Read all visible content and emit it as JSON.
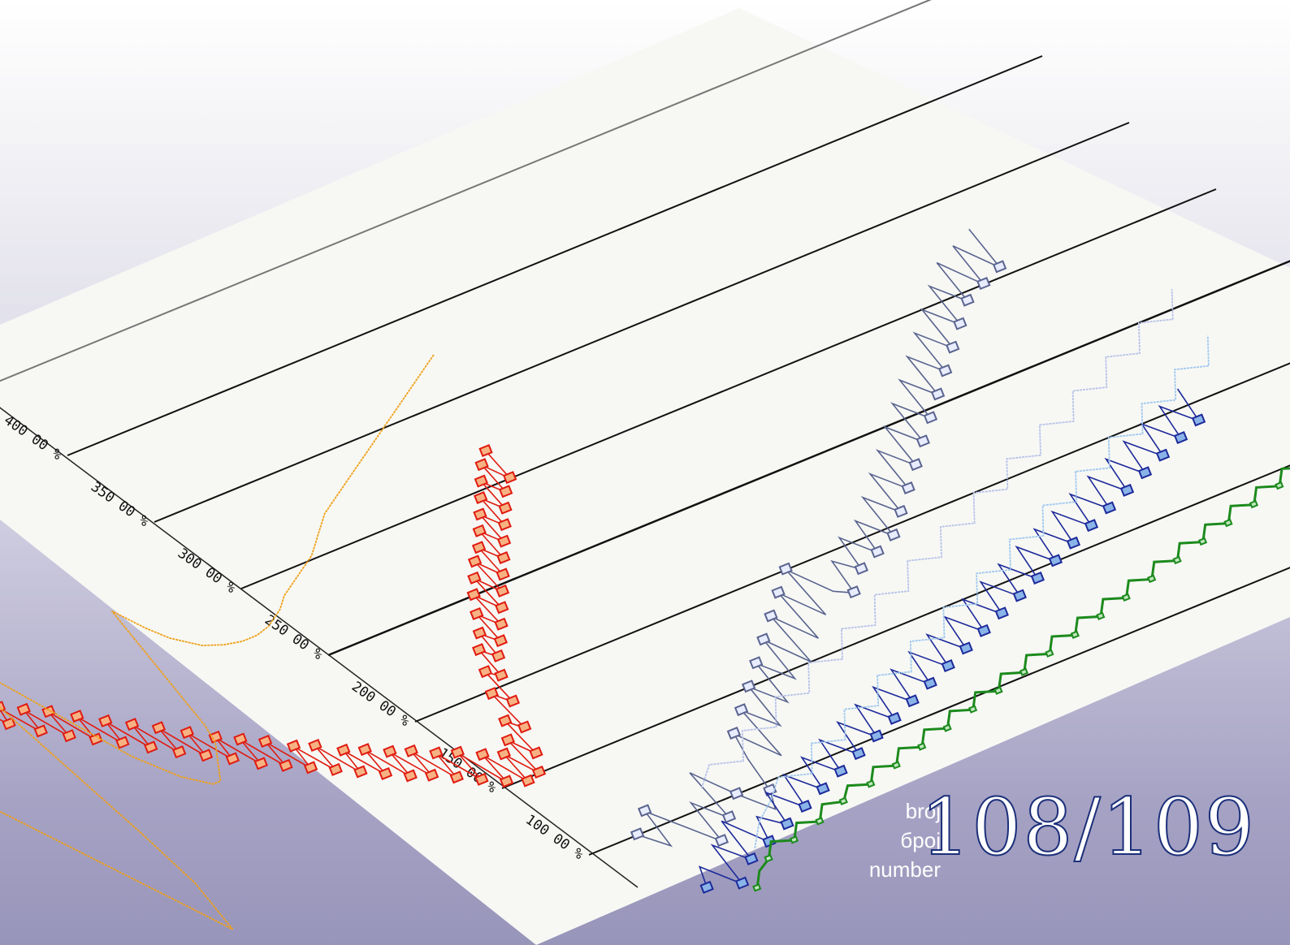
{
  "cover": {
    "words": [
      "broj",
      "број",
      "number"
    ],
    "issue_number": "108/109"
  },
  "colors": {
    "background_top": "#ffffff",
    "background_bottom": "#9895ba",
    "plane": "#f7f8f4",
    "red_series": "#e01b10",
    "red_marker_fill": "#f7b283",
    "orange_series": "#f0a018",
    "navy_series": "#1d2a9a",
    "navy_marker_fill": "#8ab4e8",
    "slate_series": "#5a648f",
    "green_series": "#1c8a1c",
    "light_blue_series": "#a0c8ee",
    "number_outline": "#1b2f7a"
  },
  "chart_data": {
    "type": "line",
    "title": "",
    "xlabel": "",
    "ylabel": "",
    "y_tick_labels": [
      "100 00 %",
      "150 00 %",
      "200 00 %",
      "250 00 %",
      "300 00 %",
      "350 00 %",
      "400 00 %"
    ],
    "ylim": [
      0,
      460
    ],
    "grid": true,
    "series": [
      {
        "color": "red",
        "values": [
          380,
          395,
          372,
          388,
          360,
          375,
          355,
          365,
          350,
          360,
          340,
          352,
          330,
          345,
          320,
          335,
          310,
          325,
          300,
          315,
          295,
          310,
          290,
          302,
          285,
          296,
          280,
          290,
          270,
          284,
          262,
          278,
          255,
          270,
          248,
          262,
          240,
          255,
          232,
          248,
          225,
          240,
          218,
          232,
          210,
          226,
          204,
          220,
          198,
          212,
          192,
          208,
          186,
          200,
          180,
          196,
          174,
          190,
          170,
          186,
          164,
          180,
          158,
          176,
          152,
          170,
          148,
          166,
          150,
          172,
          160,
          182,
          175,
          198,
          190,
          210,
          205,
          222,
          215,
          230,
          222,
          240,
          230,
          250,
          238,
          258,
          246,
          266,
          254,
          272,
          262,
          280,
          270,
          288,
          278,
          296,
          286,
          304,
          294,
          312,
          300,
          318
        ]
      },
      {
        "color": "orange",
        "values": [
          360,
          345,
          330,
          315,
          300,
          285,
          270,
          255,
          240,
          225,
          210,
          195,
          180,
          165,
          150,
          135,
          150,
          165,
          200,
          245,
          290,
          330,
          320,
          300,
          280,
          260,
          240,
          230,
          220,
          215,
          210,
          210,
          215,
          220,
          225,
          230,
          240,
          255,
          270,
          285,
          300,
          315,
          300,
          290,
          285,
          280,
          278,
          276,
          275,
          274,
          274,
          274,
          275,
          276,
          278,
          280,
          282,
          285,
          288,
          290,
          292,
          294,
          296,
          298,
          300,
          302,
          305,
          308,
          311,
          314,
          317,
          320,
          322,
          324,
          326,
          328,
          330,
          332,
          334,
          336,
          338,
          340,
          342,
          344,
          346,
          348,
          350,
          352,
          354,
          356,
          358,
          360,
          362,
          364,
          366,
          368,
          370,
          372,
          374,
          376
        ]
      },
      {
        "color": "slate",
        "values": [
          100,
          88,
          110,
          95,
          80,
          105,
          90,
          120,
          100,
          85,
          95,
          115,
          130,
          110,
          140,
          125,
          150,
          135,
          160,
          145,
          170,
          150,
          180,
          160,
          190,
          170,
          200,
          180,
          175,
          195,
          185,
          205,
          190,
          210,
          195,
          220,
          205,
          230,
          215,
          240,
          225,
          250,
          235,
          260,
          245,
          270,
          255,
          280,
          265,
          290,
          275,
          300,
          285,
          310,
          295,
          320,
          300,
          325,
          305,
          330
        ]
      },
      {
        "color": "navy",
        "values": [
          60,
          72,
          55,
          80,
          65,
          90,
          70,
          85,
          75,
          95,
          80,
          100,
          85,
          105,
          90,
          110,
          95,
          115,
          100,
          120,
          105,
          125,
          110,
          130,
          115,
          135,
          120,
          140,
          125,
          145,
          130,
          150,
          135,
          155,
          140,
          160,
          145,
          165,
          150,
          170,
          155,
          175,
          160,
          180,
          165,
          185,
          170,
          190,
          175,
          195,
          180,
          200,
          185,
          205,
          190,
          210
        ]
      },
      {
        "color": "light_blue",
        "values": [
          70,
          82,
          90,
          100,
          95,
          110,
          105,
          120,
          115,
          130,
          125,
          140,
          135,
          150,
          145,
          160,
          155,
          170,
          165,
          180,
          175,
          190,
          185,
          200,
          195,
          210,
          205,
          220,
          215,
          230
        ]
      },
      {
        "color": "light_slate",
        "values": [
          110,
          120,
          115,
          130,
          125,
          140,
          135,
          150,
          145,
          160,
          155,
          170,
          165,
          180,
          175,
          190,
          185,
          200,
          195,
          210,
          205,
          220,
          215,
          230,
          225,
          240,
          235,
          250,
          245,
          260
        ]
      },
      {
        "color": "green",
        "values": [
          50,
          58,
          62,
          70,
          66,
          74,
          70,
          78,
          75,
          82,
          78,
          86,
          82,
          90,
          86,
          94,
          90,
          98,
          94,
          102,
          98,
          106,
          102,
          110,
          106,
          114,
          110,
          118,
          114,
          122,
          118,
          126,
          122,
          130,
          126,
          134,
          130,
          138,
          134,
          142,
          138,
          146,
          142,
          150,
          146,
          154
        ]
      }
    ]
  }
}
